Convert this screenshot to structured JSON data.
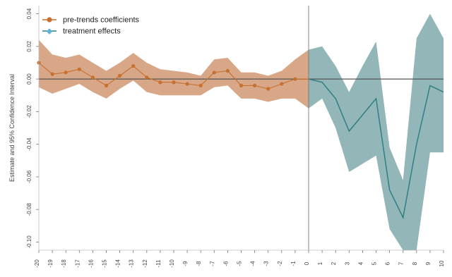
{
  "chart_data": {
    "type": "line",
    "ylabel": "Estimate and 95% Confidence Interval",
    "ylim": [
      -0.105,
      0.045
    ],
    "yticks": [
      -0.1,
      -0.08,
      -0.06,
      -0.04,
      -0.02,
      0.0,
      0.02,
      0.04
    ],
    "ytick_labels": [
      "-0.10",
      "-0.08",
      "-0.06",
      "-0.04",
      "-0.02",
      "0.00",
      "0.02",
      "0.04"
    ],
    "grid": false,
    "legend_position": "top-left",
    "reference_line_y": 0.0,
    "reference_line_x": 0,
    "x": [
      -20,
      -19,
      -18,
      -17,
      -16,
      -15,
      -14,
      -13,
      -12,
      -11,
      -10,
      -9,
      -8,
      -7,
      -6,
      -5,
      -4,
      -3,
      -2,
      -1,
      0,
      1,
      2,
      3,
      4,
      5,
      6,
      7,
      8,
      9,
      10
    ],
    "x_tick_labels": [
      "-20",
      "-19",
      "-18",
      "-17",
      "-16",
      "-15",
      "-14",
      "-13",
      "-12",
      "-11",
      "-10",
      "-9",
      "-8",
      "-7",
      "-6",
      "-5",
      "-4",
      "-3",
      "-2",
      "-1",
      "0",
      "1",
      "2",
      "3",
      "4",
      "5",
      "6",
      "7",
      "8",
      "9",
      "10"
    ],
    "series": [
      {
        "name": "pre-trends coefficients",
        "color": "#c8702e",
        "band_color": "#c98a5f",
        "x": [
          -20,
          -19,
          -18,
          -17,
          -16,
          -15,
          -14,
          -13,
          -12,
          -11,
          -10,
          -9,
          -8,
          -7,
          -6,
          -5,
          -4,
          -3,
          -2,
          -1,
          0
        ],
        "values": [
          0.01,
          0.003,
          0.004,
          0.006,
          0.001,
          -0.004,
          0.002,
          0.008,
          0.001,
          -0.002,
          -0.002,
          -0.003,
          -0.004,
          0.004,
          0.005,
          -0.004,
          -0.004,
          -0.006,
          -0.003,
          0.0,
          0.0
        ],
        "lower": [
          -0.005,
          -0.009,
          -0.006,
          -0.003,
          -0.008,
          -0.012,
          -0.006,
          -0.001,
          -0.008,
          -0.01,
          -0.01,
          -0.01,
          -0.01,
          -0.005,
          -0.004,
          -0.012,
          -0.012,
          -0.014,
          -0.012,
          -0.012,
          -0.018
        ],
        "upper": [
          0.024,
          0.015,
          0.013,
          0.015,
          0.01,
          0.005,
          0.01,
          0.016,
          0.01,
          0.006,
          0.005,
          0.004,
          0.002,
          0.012,
          0.013,
          0.004,
          0.004,
          0.002,
          0.005,
          0.012,
          0.018
        ]
      },
      {
        "name": "treatment effects",
        "color": "#2f7f83",
        "band_color": "#6f9da0",
        "x": [
          0,
          1,
          2,
          3,
          4,
          5,
          6,
          7,
          8,
          9,
          10
        ],
        "values": [
          0.0,
          -0.002,
          -0.012,
          -0.032,
          -0.022,
          -0.012,
          -0.068,
          -0.085,
          -0.04,
          -0.004,
          -0.008
        ],
        "lower": [
          -0.018,
          -0.012,
          -0.03,
          -0.057,
          -0.052,
          -0.047,
          -0.092,
          -0.105,
          -0.105,
          -0.045,
          -0.045
        ],
        "upper": [
          0.018,
          0.02,
          0.008,
          -0.008,
          0.008,
          0.023,
          -0.042,
          -0.062,
          0.025,
          0.04,
          0.025
        ]
      }
    ]
  }
}
